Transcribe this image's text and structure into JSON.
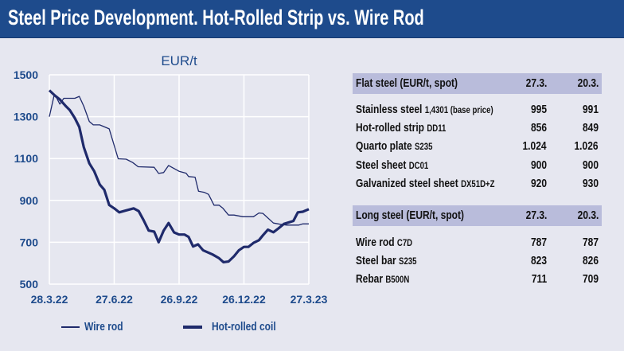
{
  "title": "Steel Price Development. Hot-Rolled Strip vs. Wire Rod",
  "colors": {
    "header": "#1e4b8c",
    "line": "#1f2a6b",
    "axis_text": "#1e4b8c",
    "band": "#b9bcdb"
  },
  "chart_data": {
    "type": "line",
    "unit_label": "EUR/t",
    "x_unit": "weeks since 28.3.22",
    "xlim": [
      0,
      52
    ],
    "ylim": [
      500,
      1500
    ],
    "yticks": [
      500,
      700,
      900,
      1100,
      1300,
      1500
    ],
    "ytick_labels": [
      "500",
      "700",
      "900",
      "1100",
      "1300",
      "1500"
    ],
    "xticks": [
      0,
      13,
      26,
      39,
      52
    ],
    "xtick_labels": [
      "28.3.22",
      "27.6.22",
      "26.9.22",
      "26.12.22",
      "27.3.23"
    ],
    "grid": true,
    "legend": {
      "placement": "bottom",
      "entries": [
        "Wire rod",
        "Hot-rolled coil"
      ]
    },
    "series": [
      {
        "name": "Wire rod",
        "style": "thin",
        "points": [
          [
            0,
            1300
          ],
          [
            1,
            1407
          ],
          [
            1.5,
            1388
          ],
          [
            2.1,
            1360
          ],
          [
            2.9,
            1388
          ],
          [
            5.1,
            1388
          ],
          [
            6,
            1397
          ],
          [
            6.9,
            1350
          ],
          [
            8,
            1277
          ],
          [
            8.8,
            1261
          ],
          [
            10.1,
            1261
          ],
          [
            12,
            1242
          ],
          [
            13.8,
            1099
          ],
          [
            15.4,
            1097
          ],
          [
            16.7,
            1081
          ],
          [
            17.8,
            1061
          ],
          [
            21,
            1058
          ],
          [
            21.9,
            1029
          ],
          [
            22.9,
            1033
          ],
          [
            23.9,
            1067
          ],
          [
            26,
            1039
          ],
          [
            27.4,
            1030
          ],
          [
            27.9,
            1014
          ],
          [
            29.2,
            1011
          ],
          [
            29.9,
            944
          ],
          [
            31.1,
            938
          ],
          [
            31.9,
            929
          ],
          [
            33,
            877
          ],
          [
            34,
            877
          ],
          [
            34.8,
            862
          ],
          [
            35.9,
            830
          ],
          [
            37,
            830
          ],
          [
            38.8,
            822
          ],
          [
            40.9,
            822
          ],
          [
            42,
            840
          ],
          [
            42.8,
            838
          ],
          [
            44.9,
            792
          ],
          [
            46.3,
            786
          ],
          [
            47.6,
            782
          ],
          [
            50,
            782
          ],
          [
            50.8,
            788
          ],
          [
            52,
            788
          ]
        ]
      },
      {
        "name": "Hot-rolled coil",
        "style": "thick",
        "points": [
          [
            0,
            1426
          ],
          [
            1.1,
            1401
          ],
          [
            2.1,
            1382
          ],
          [
            3.2,
            1353
          ],
          [
            4.1,
            1331
          ],
          [
            5.1,
            1293
          ],
          [
            6,
            1251
          ],
          [
            6.9,
            1154
          ],
          [
            8,
            1077
          ],
          [
            9,
            1039
          ],
          [
            10.1,
            976
          ],
          [
            11,
            951
          ],
          [
            12,
            878
          ],
          [
            13,
            862
          ],
          [
            14,
            843
          ],
          [
            15.2,
            851
          ],
          [
            16.9,
            862
          ],
          [
            17.9,
            849
          ],
          [
            18.9,
            805
          ],
          [
            19.9,
            756
          ],
          [
            21,
            751
          ],
          [
            21.9,
            700
          ],
          [
            22.9,
            756
          ],
          [
            23.9,
            792
          ],
          [
            25,
            747
          ],
          [
            26,
            737
          ],
          [
            27.1,
            737
          ],
          [
            27.9,
            726
          ],
          [
            28.8,
            680
          ],
          [
            29.8,
            690
          ],
          [
            30.8,
            662
          ],
          [
            32.7,
            642
          ],
          [
            34,
            624
          ],
          [
            34.9,
            605
          ],
          [
            35.9,
            608
          ],
          [
            37,
            633
          ],
          [
            38,
            662
          ],
          [
            39,
            678
          ],
          [
            39.9,
            678
          ],
          [
            40.9,
            697
          ],
          [
            42,
            710
          ],
          [
            42.8,
            733
          ],
          [
            43.8,
            760
          ],
          [
            44.9,
            748
          ],
          [
            45.9,
            766
          ],
          [
            47,
            788
          ],
          [
            48.9,
            802
          ],
          [
            49.8,
            843
          ],
          [
            50.8,
            846
          ],
          [
            52,
            858
          ]
        ]
      }
    ]
  },
  "table": {
    "flat": {
      "header": "Flat steel (EUR/t, spot)",
      "col1": "27.3.",
      "col2": "20.3.",
      "rows": [
        {
          "label": "Stainless steel",
          "grade": "1,4301 (base price)",
          "v1": "995",
          "v2": "991"
        },
        {
          "label": "Hot-rolled strip",
          "grade": "DD11",
          "v1": "856",
          "v2": "849"
        },
        {
          "label": "Quarto plate",
          "grade": "S235",
          "v1": "1.024",
          "v2": "1.026"
        },
        {
          "label": "Steel sheet",
          "grade": "DC01",
          "v1": "900",
          "v2": "900"
        },
        {
          "label": "Galvanized steel sheet",
          "grade": "DX51D+Z",
          "v1": "920",
          "v2": "930"
        }
      ]
    },
    "long": {
      "header": "Long steel (EUR/t, spot)",
      "col1": "27.3.",
      "col2": "20.3.",
      "rows": [
        {
          "label": "Wire rod",
          "grade": "C7D",
          "v1": "787",
          "v2": "787"
        },
        {
          "label": "Steel bar",
          "grade": "S235",
          "v1": "823",
          "v2": "826"
        },
        {
          "label": "Rebar",
          "grade": "B500N",
          "v1": "711",
          "v2": "709"
        }
      ]
    }
  }
}
